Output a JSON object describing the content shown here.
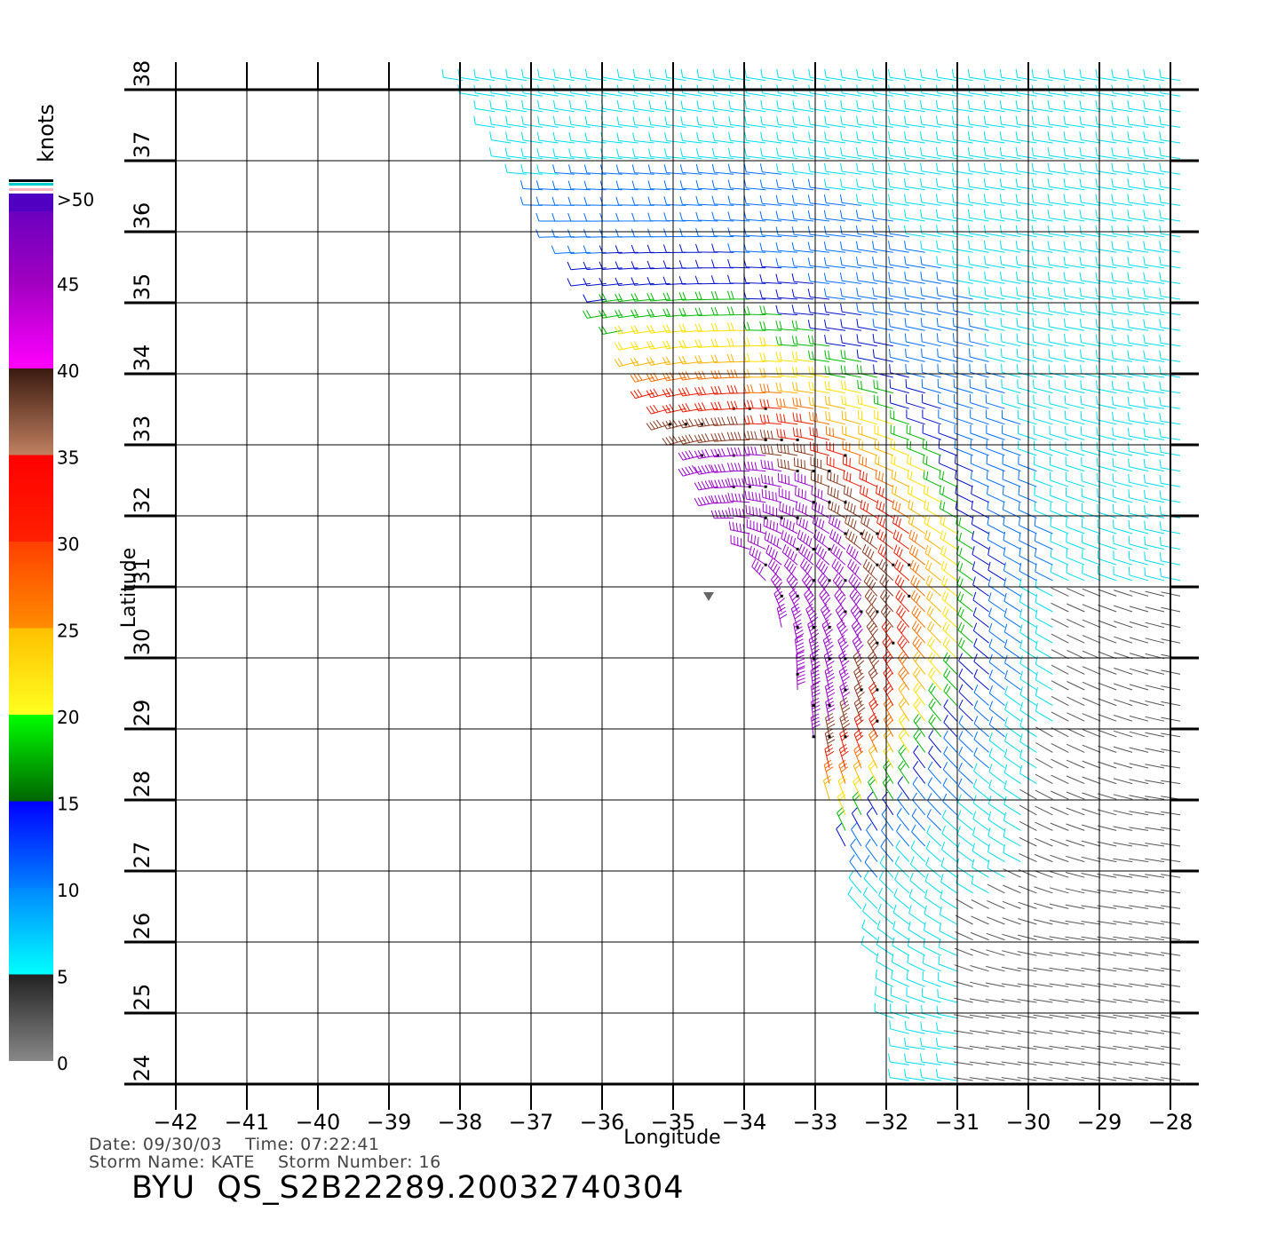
{
  "map": {
    "axes": {
      "x_label": "Longitude",
      "y_label": "Latitude",
      "x_ticks": [
        -42,
        -41,
        -40,
        -39,
        -38,
        -37,
        -36,
        -35,
        -34,
        -33,
        -32,
        -31,
        -30,
        -29,
        -28
      ],
      "x_tick_labels": [
        "−42",
        "−41",
        "−40",
        "−39",
        "−38",
        "−37",
        "−36",
        "−35",
        "−34",
        "−33",
        "−32",
        "−31",
        "−30",
        "−29",
        "−28"
      ],
      "y_ticks": [
        24,
        25,
        26,
        27,
        28,
        29,
        30,
        31,
        32,
        33,
        34,
        35,
        36,
        37,
        38
      ],
      "y_tick_labels": [
        "24",
        "25",
        "26",
        "27",
        "28",
        "29",
        "30",
        "31",
        "32",
        "33",
        "34",
        "35",
        "36",
        "37",
        "38"
      ],
      "x_range": [
        -42,
        -28
      ],
      "y_range": [
        24,
        38
      ],
      "grid": true
    },
    "legend": {
      "unit_label": "knots",
      "placement": "left",
      "bins": [
        {
          "label": "0",
          "from": 0,
          "to": 5,
          "colors": [
            "#888888",
            "#222222"
          ]
        },
        {
          "label": "5",
          "from": 5,
          "to": 10,
          "colors": [
            "#00ffff",
            "#0088ff"
          ]
        },
        {
          "label": "10",
          "from": 10,
          "to": 15,
          "colors": [
            "#0080ff",
            "#0000ff"
          ]
        },
        {
          "label": "15",
          "from": 15,
          "to": 20,
          "colors": [
            "#006400",
            "#00ff00"
          ]
        },
        {
          "label": "20",
          "from": 20,
          "to": 25,
          "colors": [
            "#ffff20",
            "#ffc000"
          ]
        },
        {
          "label": "25",
          "from": 25,
          "to": 30,
          "colors": [
            "#ff8c00",
            "#ff4000"
          ]
        },
        {
          "label": "30",
          "from": 30,
          "to": 35,
          "colors": [
            "#ff2000",
            "#ff0000"
          ]
        },
        {
          "label": "35",
          "from": 35,
          "to": 40,
          "colors": [
            "#c08060",
            "#3a1a10"
          ]
        },
        {
          "label": "40",
          "from": 40,
          "to": 45,
          "colors": [
            "#ff00ff",
            "#a000c0"
          ]
        },
        {
          "label": "45",
          "from": 45,
          "to": 50,
          "colors": [
            "#a000c0",
            "#6000c0"
          ]
        },
        {
          "label": ">50",
          "from": 50,
          "to": 60,
          "colors": [
            "#6000c0",
            "#4a00b0"
          ]
        }
      ],
      "extra_stripes": [
        "#ffb6c1",
        "#00ced1",
        "#000000"
      ]
    },
    "storm_center": {
      "lon": -34.5,
      "lat": 30.8
    }
  },
  "info": {
    "date_label": "Date:",
    "date": "09/30/03",
    "time_label": "Time:",
    "time": "07:22:41",
    "storm_name_label": "Storm Name:",
    "storm_name": "KATE",
    "storm_number_label": "Storm Number:",
    "storm_number": "16"
  },
  "file_title": "BYU  QS_S2B22289.20032740304"
}
